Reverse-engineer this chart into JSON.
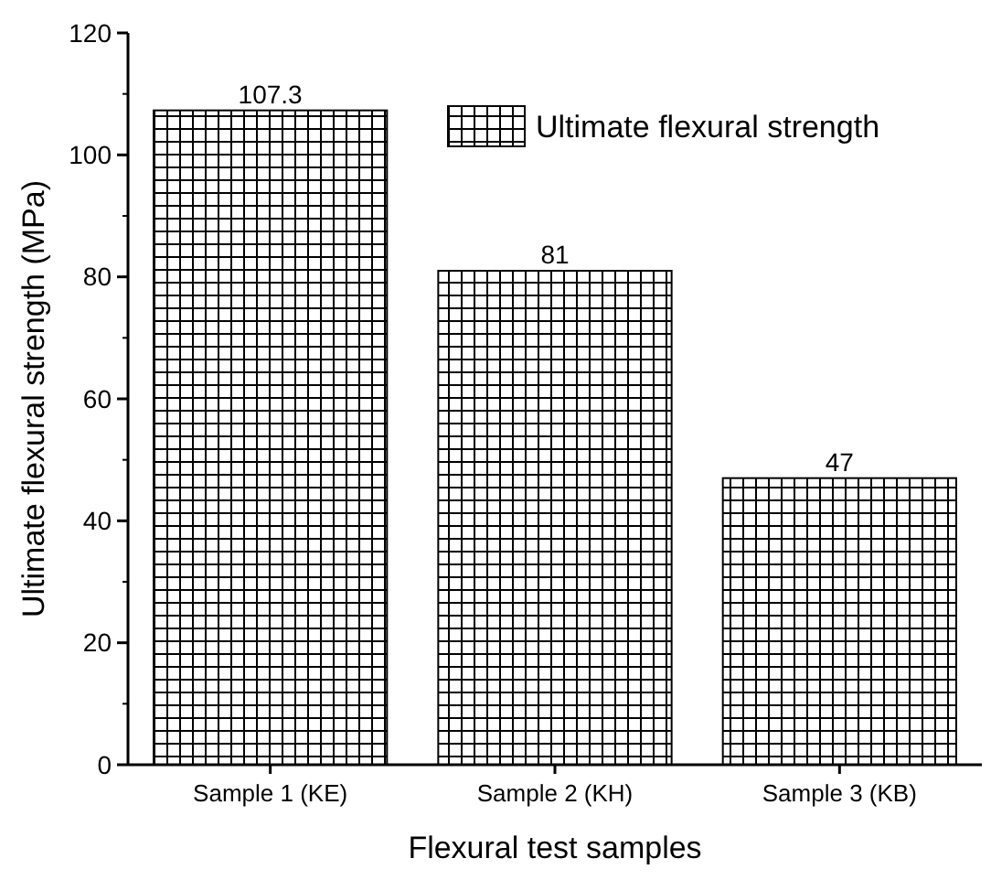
{
  "chart_data": {
    "type": "bar",
    "xlabel": "Flexural test samples",
    "ylabel": "Ultimate flexural strength (MPa)",
    "categories": [
      "Sample 1 (KE)",
      "Sample 2 (KH)",
      "Sample 3 (KB)"
    ],
    "series": [
      {
        "name": "Ultimate flexural strength",
        "color": "#000000",
        "values": [
          107.3,
          81,
          47
        ]
      }
    ],
    "ylim": [
      0,
      120
    ],
    "yticks": [
      0,
      20,
      40,
      60,
      80,
      100,
      120
    ],
    "data_labels": true,
    "legend": "top right",
    "grid": false
  }
}
